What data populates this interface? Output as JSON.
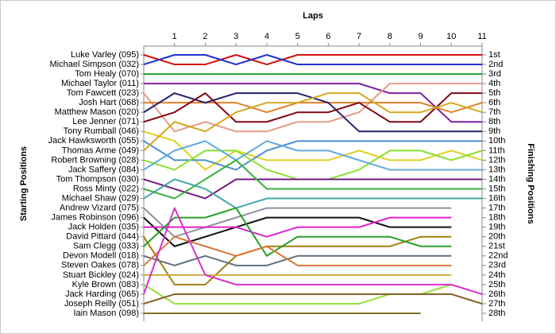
{
  "chart_data": {
    "type": "line",
    "title": "Laps",
    "y_label": "Starting Positions",
    "y2_label": "Finishing Positions",
    "x": [
      0,
      1,
      2,
      3,
      4,
      5,
      6,
      7,
      8,
      9,
      10,
      11
    ],
    "xlim": [
      0,
      11
    ],
    "xticks": [
      1,
      2,
      3,
      4,
      5,
      6,
      7,
      8,
      9,
      10,
      11
    ],
    "ylim": [
      1,
      28
    ],
    "inverted_y": true,
    "yticks": [
      {
        "value": 1,
        "label": "1st"
      },
      {
        "value": 2,
        "label": "2nd"
      },
      {
        "value": 3,
        "label": "3rd"
      },
      {
        "value": 4,
        "label": "4th"
      },
      {
        "value": 5,
        "label": "5th"
      },
      {
        "value": 6,
        "label": "6th"
      },
      {
        "value": 7,
        "label": "7th"
      },
      {
        "value": 8,
        "label": "8th"
      },
      {
        "value": 9,
        "label": "9th"
      },
      {
        "value": 10,
        "label": "10th"
      },
      {
        "value": 11,
        "label": "11th"
      },
      {
        "value": 12,
        "label": "12th"
      },
      {
        "value": 13,
        "label": "13th"
      },
      {
        "value": 14,
        "label": "14th"
      },
      {
        "value": 15,
        "label": "15th"
      },
      {
        "value": 16,
        "label": "16th"
      },
      {
        "value": 17,
        "label": "17th"
      },
      {
        "value": 18,
        "label": "18th"
      },
      {
        "value": 19,
        "label": "19th"
      },
      {
        "value": 20,
        "label": "20th"
      },
      {
        "value": 21,
        "label": "21st"
      },
      {
        "value": 22,
        "label": "22nd"
      },
      {
        "value": 23,
        "label": "23rd"
      },
      {
        "value": 24,
        "label": "24th"
      },
      {
        "value": 25,
        "label": "25th"
      },
      {
        "value": 26,
        "label": "26th"
      },
      {
        "value": 27,
        "label": "27th"
      },
      {
        "value": 28,
        "label": "28th"
      }
    ],
    "series": [
      {
        "name": "Luke Varley (095)",
        "color": "#d01010",
        "values": [
          1,
          2,
          2,
          1,
          2,
          1,
          1,
          1,
          1,
          1,
          1,
          1
        ]
      },
      {
        "name": "Michael Simpson (032)",
        "color": "#2030d0",
        "values": [
          2,
          1,
          1,
          2,
          1,
          2,
          2,
          2,
          2,
          2,
          2,
          2
        ]
      },
      {
        "name": "Tom Healy (070)",
        "color": "#20a030",
        "values": [
          3,
          3,
          3,
          3,
          3,
          3,
          3,
          3,
          3,
          3,
          3,
          3
        ]
      },
      {
        "name": "Michael Taylor (011)",
        "color": "#8020a0",
        "values": [
          4,
          4,
          4,
          4,
          4,
          4,
          4,
          4,
          5,
          5,
          8,
          8
        ]
      },
      {
        "name": "Tom Fawcett (023)",
        "color": "#e89a88",
        "values": [
          5,
          9,
          8,
          9,
          9,
          8,
          8,
          7,
          4,
          4,
          4,
          4
        ]
      },
      {
        "name": "Josh Hart (068)",
        "color": "#e08028",
        "values": [
          6,
          6,
          6,
          6,
          7,
          6,
          6,
          6,
          6,
          6,
          7,
          6
        ]
      },
      {
        "name": "Matthew Mason (020)",
        "color": "#202070",
        "values": [
          7,
          5,
          6,
          5,
          5,
          5,
          6,
          9,
          9,
          9,
          9,
          9
        ]
      },
      {
        "name": "Lee Jenner (071)",
        "color": "#800818",
        "values": [
          8,
          7,
          5,
          8,
          8,
          7,
          7,
          6,
          8,
          8,
          5,
          5
        ]
      },
      {
        "name": "Tony Rumball (046)",
        "color": "#e0d020",
        "values": [
          9,
          10,
          13,
          11,
          12,
          12,
          12,
          11,
          12,
          12,
          11,
          12
        ]
      },
      {
        "name": "Jack Hawksworth (055)",
        "color": "#4a8ed0",
        "values": [
          10,
          12,
          12,
          13,
          11,
          10,
          10,
          10,
          10,
          10,
          10,
          10
        ]
      },
      {
        "name": "Thomas Arme (049)",
        "color": "#d4a820",
        "values": [
          11,
          8,
          9,
          7,
          6,
          6,
          5,
          5,
          7,
          7,
          6,
          7
        ]
      },
      {
        "name": "Robert Browning (028)",
        "color": "#88e030",
        "values": [
          12,
          13,
          11,
          11,
          13,
          14,
          14,
          13,
          11,
          11,
          12,
          11
        ]
      },
      {
        "name": "Jack Saffery (084)",
        "color": "#60a8e0",
        "values": [
          13,
          11,
          10,
          12,
          10,
          11,
          11,
          12,
          13,
          13,
          13,
          13
        ]
      },
      {
        "name": "Tom Thompson (030)",
        "color": "#701a80",
        "values": [
          14,
          15,
          16,
          14,
          14,
          14,
          14,
          14,
          14,
          14,
          14,
          14
        ]
      },
      {
        "name": "Ross Minty (022)",
        "color": "#38b038",
        "values": [
          15,
          16,
          14,
          12,
          15,
          15,
          15,
          15,
          15,
          15,
          15,
          15
        ]
      },
      {
        "name": "Michael Shaw (029)",
        "color": "#40a8a8",
        "values": [
          16,
          14,
          15,
          17,
          16,
          16,
          16,
          16,
          16,
          16,
          16,
          16
        ]
      },
      {
        "name": "Andrew Vizard (075)",
        "color": "#9090a0",
        "values": [
          17,
          20,
          19,
          18,
          17,
          17,
          17,
          17,
          17,
          17,
          17,
          null
        ]
      },
      {
        "name": "James Robinson (096)",
        "color": "#101010",
        "values": [
          18,
          21,
          20,
          19,
          18,
          18,
          18,
          18,
          19,
          19,
          19,
          null
        ]
      },
      {
        "name": "Jack Holden (035)",
        "color": "#e020d0",
        "values": [
          19,
          19,
          19,
          19,
          20,
          19,
          19,
          19,
          18,
          18,
          18,
          null
        ]
      },
      {
        "name": "David Pittard (044)",
        "color": "#a08010",
        "values": [
          20,
          25,
          25,
          22,
          21,
          21,
          21,
          21,
          21,
          20,
          20,
          null
        ]
      },
      {
        "name": "Sam Clegg (033)",
        "color": "#28a028",
        "values": [
          21,
          18,
          18,
          17,
          22,
          20,
          20,
          20,
          20,
          21,
          21,
          null
        ]
      },
      {
        "name": "Devon Modell (018)",
        "color": "#607080",
        "values": [
          22,
          23,
          22,
          23,
          23,
          22,
          22,
          22,
          22,
          22,
          22,
          null
        ]
      },
      {
        "name": "Steven Oakes (078)",
        "color": "#d87838",
        "values": [
          23,
          20,
          21,
          22,
          21,
          23,
          23,
          23,
          23,
          23,
          23,
          null
        ]
      },
      {
        "name": "Stuart Bickley (024)",
        "color": "#c8b040",
        "values": [
          24,
          24,
          24,
          24,
          24,
          24,
          24,
          24,
          24,
          24,
          24,
          null
        ]
      },
      {
        "name": "Kyle Brown (083)",
        "color": "#98e040",
        "values": [
          25,
          27,
          27,
          27,
          27,
          27,
          27,
          27,
          26,
          26,
          25,
          null
        ]
      },
      {
        "name": "Jack Harding (065)",
        "color": "#d830d0",
        "values": [
          26,
          17,
          24,
          25,
          25,
          25,
          25,
          25,
          25,
          25,
          25,
          26
        ]
      },
      {
        "name": "Joseph Reilly (051)",
        "color": "#806020",
        "values": [
          27,
          26,
          26,
          26,
          26,
          26,
          26,
          26,
          26,
          26,
          26,
          27
        ]
      },
      {
        "name": "Iain Mason (098)",
        "color": "#807028",
        "values": [
          28,
          28,
          28,
          28,
          28,
          28,
          28,
          28,
          28,
          28,
          null,
          null
        ]
      }
    ]
  }
}
